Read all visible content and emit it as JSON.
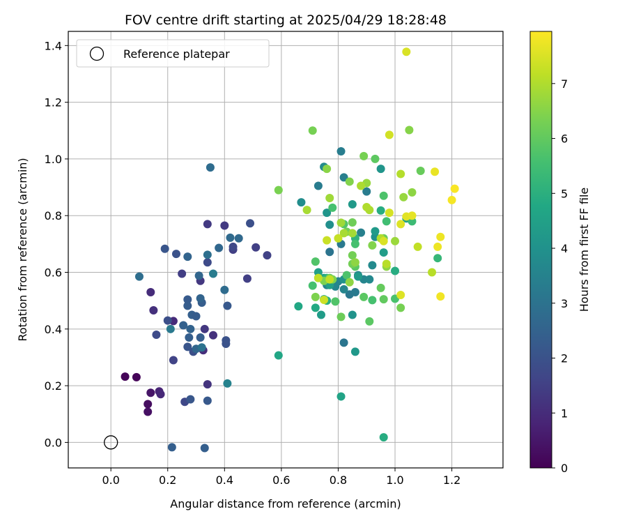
{
  "chart_data": {
    "type": "scatter",
    "title": "FOV centre drift starting at 2025/04/29 18:28:48",
    "xlabel": "Angular distance from reference (arcmin)",
    "ylabel": "Rotation from reference (arcmin)",
    "xlim": [
      -0.15,
      1.38
    ],
    "ylim": [
      -0.09,
      1.45
    ],
    "xticks": [
      0.0,
      0.2,
      0.4,
      0.6,
      0.8,
      1.0,
      1.2
    ],
    "xtick_labels": [
      "0.0",
      "0.2",
      "0.4",
      "0.6",
      "0.8",
      "1.0",
      "1.2"
    ],
    "yticks": [
      0.0,
      0.2,
      0.4,
      0.6,
      0.8,
      1.0,
      1.2,
      1.4
    ],
    "ytick_labels": [
      "0.0",
      "0.2",
      "0.4",
      "0.6",
      "0.8",
      "1.0",
      "1.2",
      "1.4"
    ],
    "grid": true,
    "legend": {
      "position": "top-left",
      "entries": [
        "Reference platepar"
      ]
    },
    "reference_point": {
      "x": 0.0,
      "y": 0.0,
      "label": "Reference platepar"
    },
    "colorbar": {
      "label": "Hours from first FF file",
      "range": [
        0,
        7.95
      ],
      "ticks": [
        0,
        1,
        2,
        3,
        4,
        5,
        6,
        7
      ],
      "tick_labels": [
        "0",
        "1",
        "2",
        "3",
        "4",
        "5",
        "6",
        "7"
      ],
      "colormap": "viridis"
    },
    "points": [
      [
        0.05,
        0.232,
        0.1
      ],
      [
        0.09,
        0.23,
        0.1
      ],
      [
        0.13,
        0.135,
        0.3
      ],
      [
        0.13,
        0.108,
        0.35
      ],
      [
        0.14,
        0.175,
        0.45
      ],
      [
        0.17,
        0.18,
        0.8
      ],
      [
        0.175,
        0.17,
        0.9
      ],
      [
        0.22,
        0.428,
        0.95
      ],
      [
        0.14,
        0.53,
        1.0
      ],
      [
        0.15,
        0.466,
        1.1
      ],
      [
        0.325,
        0.325,
        1.05
      ],
      [
        0.34,
        0.205,
        1.2
      ],
      [
        0.36,
        0.378,
        1.15
      ],
      [
        0.315,
        0.57,
        1.3
      ],
      [
        0.33,
        0.4,
        1.3
      ],
      [
        0.34,
        0.77,
        1.35
      ],
      [
        0.4,
        0.765,
        1.35
      ],
      [
        0.25,
        0.595,
        1.45
      ],
      [
        0.48,
        0.578,
        1.5
      ],
      [
        0.51,
        0.688,
        1.5
      ],
      [
        0.43,
        0.68,
        1.5
      ],
      [
        0.55,
        0.66,
        1.55
      ],
      [
        0.22,
        0.29,
        1.6
      ],
      [
        0.26,
        0.143,
        1.7
      ],
      [
        0.16,
        0.38,
        1.8
      ],
      [
        0.2,
        0.43,
        1.9
      ],
      [
        0.29,
        0.32,
        1.9
      ],
      [
        0.34,
        0.635,
        1.8
      ],
      [
        0.43,
        0.69,
        1.75
      ],
      [
        0.49,
        0.773,
        1.95
      ],
      [
        0.23,
        0.665,
        2.0
      ],
      [
        0.19,
        0.683,
        2.1
      ],
      [
        0.405,
        0.348,
        2.0
      ],
      [
        0.405,
        0.36,
        2.0
      ],
      [
        0.27,
        0.337,
        2.1
      ],
      [
        0.28,
        0.152,
        2.15
      ],
      [
        0.34,
        0.147,
        2.2
      ],
      [
        0.41,
        0.482,
        2.2
      ],
      [
        0.27,
        0.504,
        2.25
      ],
      [
        0.27,
        0.482,
        2.3
      ],
      [
        0.285,
        0.45,
        2.4
      ],
      [
        0.3,
        0.445,
        2.3
      ],
      [
        0.32,
        0.493,
        2.35
      ],
      [
        0.255,
        0.413,
        2.45
      ],
      [
        0.275,
        0.37,
        2.4
      ],
      [
        0.315,
        0.37,
        2.35
      ],
      [
        0.215,
        -0.017,
        2.4
      ],
      [
        0.33,
        -0.02,
        2.4
      ],
      [
        0.315,
        0.508,
        2.55
      ],
      [
        0.3,
        0.33,
        2.6
      ],
      [
        0.28,
        0.4,
        2.5
      ],
      [
        0.27,
        0.655,
        2.55
      ],
      [
        0.31,
        0.588,
        2.6
      ],
      [
        0.38,
        0.686,
        2.65
      ],
      [
        0.45,
        0.72,
        2.7
      ],
      [
        0.42,
        0.722,
        2.75
      ],
      [
        0.35,
        0.97,
        2.8
      ],
      [
        0.34,
        0.662,
        2.9
      ],
      [
        0.4,
        0.538,
        2.8
      ],
      [
        0.1,
        0.585,
        2.85
      ],
      [
        0.32,
        0.335,
        3.0
      ],
      [
        0.21,
        0.4,
        3.2
      ],
      [
        0.36,
        0.595,
        3.3
      ],
      [
        0.41,
        0.208,
        3.5
      ],
      [
        0.77,
        0.672,
        3.05
      ],
      [
        0.82,
        0.352,
        3.1
      ],
      [
        0.84,
        0.522,
        3.15
      ],
      [
        0.81,
        0.7,
        3.2
      ],
      [
        0.86,
        0.53,
        3.25
      ],
      [
        0.73,
        0.905,
        3.3
      ],
      [
        0.81,
        1.027,
        3.35
      ],
      [
        0.82,
        0.935,
        3.4
      ],
      [
        0.9,
        0.885,
        3.3
      ],
      [
        0.88,
        0.74,
        3.45
      ],
      [
        0.76,
        0.555,
        3.5
      ],
      [
        0.8,
        0.568,
        3.55
      ],
      [
        0.79,
        0.55,
        3.6
      ],
      [
        0.82,
        0.54,
        3.6
      ],
      [
        0.89,
        0.575,
        3.6
      ],
      [
        0.91,
        0.575,
        3.7
      ],
      [
        0.87,
        0.59,
        3.65
      ],
      [
        0.92,
        0.625,
        3.75
      ],
      [
        0.75,
        0.972,
        3.8
      ],
      [
        0.67,
        0.847,
        3.85
      ],
      [
        0.77,
        0.768,
        3.9
      ],
      [
        0.93,
        0.725,
        3.95
      ],
      [
        0.85,
        0.45,
        4.05
      ],
      [
        0.82,
        0.575,
        4.05
      ],
      [
        0.76,
        0.81,
        4.1
      ],
      [
        0.95,
        0.965,
        4.1
      ],
      [
        0.86,
        0.32,
        4.2
      ],
      [
        0.93,
        0.745,
        4.3
      ],
      [
        0.85,
        0.84,
        4.25
      ],
      [
        0.87,
        0.585,
        4.3
      ],
      [
        0.74,
        0.45,
        4.35
      ],
      [
        0.96,
        0.67,
        4.4
      ],
      [
        0.73,
        0.6,
        4.45
      ],
      [
        0.73,
        0.58,
        4.5
      ],
      [
        0.75,
        0.58,
        4.5
      ],
      [
        0.77,
        0.555,
        4.5
      ],
      [
        1.04,
        0.79,
        4.5
      ],
      [
        0.81,
        0.162,
        4.6
      ],
      [
        0.59,
        0.307,
        4.7
      ],
      [
        0.66,
        0.48,
        4.75
      ],
      [
        0.72,
        0.475,
        4.8
      ],
      [
        0.75,
        0.505,
        4.75
      ],
      [
        0.96,
        0.018,
        4.9
      ],
      [
        0.95,
        0.818,
        4.9
      ],
      [
        1.0,
        0.605,
        4.9
      ],
      [
        0.76,
        0.58,
        5.0
      ],
      [
        0.76,
        0.5,
        5.0
      ],
      [
        0.86,
        0.72,
        5.1
      ],
      [
        1.15,
        0.65,
        5.25
      ],
      [
        1.06,
        0.78,
        5.4
      ],
      [
        0.97,
        0.78,
        5.5
      ],
      [
        0.71,
        0.553,
        5.6
      ],
      [
        0.78,
        0.828,
        5.6
      ],
      [
        0.86,
        0.7,
        5.6
      ],
      [
        0.83,
        0.59,
        5.7
      ],
      [
        0.92,
        0.502,
        5.6
      ],
      [
        1.0,
        0.507,
        5.65
      ],
      [
        0.96,
        0.87,
        5.7
      ],
      [
        0.72,
        0.638,
        5.75
      ],
      [
        0.79,
        0.497,
        5.75
      ],
      [
        0.82,
        0.77,
        5.8
      ],
      [
        0.86,
        0.62,
        5.9
      ],
      [
        0.89,
        0.513,
        5.9
      ],
      [
        0.91,
        0.427,
        5.9
      ],
      [
        0.93,
        1.0,
        5.95
      ],
      [
        0.96,
        0.505,
        6.0
      ],
      [
        0.95,
        0.545,
        6.05
      ],
      [
        1.09,
        0.958,
        6.1
      ],
      [
        0.77,
        0.58,
        6.1
      ],
      [
        0.81,
        0.443,
        6.15
      ],
      [
        0.96,
        0.72,
        6.15
      ],
      [
        0.83,
        0.743,
        6.2
      ],
      [
        0.85,
        0.776,
        6.2
      ],
      [
        0.85,
        0.66,
        6.25
      ],
      [
        0.85,
        0.63,
        6.25
      ],
      [
        0.71,
        1.1,
        6.3
      ],
      [
        0.89,
        1.01,
        6.3
      ],
      [
        1.02,
        0.475,
        6.3
      ],
      [
        0.59,
        0.89,
        6.35
      ],
      [
        0.72,
        0.513,
        6.4
      ],
      [
        0.75,
        0.57,
        6.4
      ],
      [
        0.78,
        0.575,
        6.4
      ],
      [
        0.84,
        0.92,
        6.45
      ],
      [
        0.92,
        0.695,
        6.45
      ],
      [
        1.05,
        1.102,
        6.5
      ],
      [
        0.76,
        0.965,
        6.55
      ],
      [
        0.84,
        0.565,
        6.6
      ],
      [
        0.86,
        0.635,
        6.6
      ],
      [
        0.97,
        0.62,
        6.6
      ],
      [
        1.06,
        0.882,
        6.6
      ],
      [
        0.9,
        0.915,
        6.7
      ],
      [
        1.03,
        0.865,
        6.7
      ],
      [
        1.0,
        0.71,
        6.75
      ],
      [
        0.77,
        0.862,
        6.8
      ],
      [
        0.81,
        0.775,
        6.8
      ],
      [
        0.85,
        0.738,
        6.85
      ],
      [
        0.82,
        0.738,
        6.9
      ],
      [
        0.69,
        0.82,
        6.9
      ],
      [
        0.88,
        0.905,
        6.95
      ],
      [
        0.91,
        0.82,
        6.95
      ],
      [
        0.9,
        0.83,
        7.0
      ],
      [
        0.95,
        0.72,
        7.0
      ],
      [
        1.02,
        0.947,
        7.05
      ],
      [
        1.13,
        0.6,
        7.1
      ],
      [
        0.97,
        0.63,
        7.1
      ],
      [
        1.08,
        0.69,
        7.2
      ],
      [
        0.73,
        0.58,
        7.2
      ],
      [
        0.77,
        0.575,
        7.2
      ],
      [
        0.8,
        0.72,
        7.25
      ],
      [
        0.76,
        0.713,
        7.3
      ],
      [
        0.75,
        0.503,
        7.35
      ],
      [
        0.98,
        1.085,
        7.4
      ],
      [
        0.98,
        0.81,
        7.45
      ],
      [
        1.04,
        1.378,
        7.5
      ],
      [
        0.96,
        0.71,
        7.5
      ],
      [
        1.02,
        0.52,
        7.55
      ],
      [
        1.02,
        0.77,
        7.55
      ],
      [
        1.04,
        0.797,
        7.6
      ],
      [
        1.06,
        0.8,
        7.65
      ],
      [
        1.14,
        0.955,
        7.7
      ],
      [
        1.16,
        0.725,
        7.75
      ],
      [
        1.15,
        0.69,
        7.75
      ],
      [
        1.16,
        0.515,
        7.8
      ],
      [
        1.2,
        0.855,
        7.85
      ],
      [
        1.21,
        0.895,
        7.9
      ]
    ]
  }
}
